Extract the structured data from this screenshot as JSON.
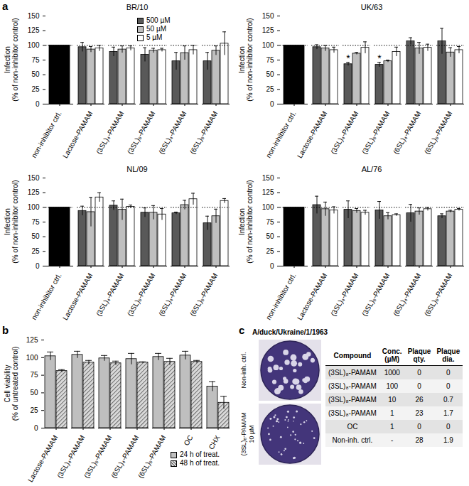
{
  "chart_data": [
    {
      "type": "bar",
      "title": "BR/10",
      "ylabel": "Infection\n(% of non-inhibitor control)",
      "categories": [
        "non-inhibitor ctrl.",
        "Lactose-PAMAM",
        "(3SL)₄-PAMAM",
        "(3SL)₈-PAMAM",
        "(6SL)₄-PAMAM",
        "(6SL)₈-PAMAM"
      ],
      "control": {
        "category": "non-inhibitor ctrl.",
        "value": 100,
        "color": "#000000"
      },
      "reference_line": {
        "value": 100,
        "line_style": "dotted"
      },
      "series": [
        {
          "name": "500 µM",
          "color": "#595959",
          "values": [
            null,
            97,
            89,
            84,
            73,
            73
          ],
          "errors": [
            null,
            8,
            8,
            12,
            15,
            15
          ]
        },
        {
          "name": "50 µM",
          "color": "#bfbfbf",
          "values": [
            null,
            93,
            93,
            91,
            87,
            91
          ],
          "errors": [
            null,
            5,
            6,
            4,
            12,
            8
          ]
        },
        {
          "name": "5 µM",
          "color": "#ffffff",
          "values": [
            null,
            95,
            95,
            92,
            92,
            103
          ],
          "errors": [
            null,
            5,
            4,
            3,
            8,
            20
          ]
        }
      ],
      "ylim": [
        0,
        150
      ],
      "yticks": [
        0,
        25,
        50,
        75,
        100,
        125,
        150
      ],
      "legend": "top-right"
    },
    {
      "type": "bar",
      "title": "UK/63",
      "ylabel": "Infection\n(% of non-inhibitor control)",
      "categories": [
        "non-inhibitor ctrl.",
        "Lactose-PAMAM",
        "(3SL)₄-PAMAM",
        "(3SL)₈-PAMAM",
        "(6SL)₄-PAMAM",
        "(6SL)₈-PAMAM"
      ],
      "control": {
        "category": "non-inhibitor ctrl.",
        "value": 100,
        "color": "#000000"
      },
      "reference_line": {
        "value": 100,
        "line_style": "dotted"
      },
      "series": [
        {
          "name": "500 µM",
          "color": "#595959",
          "values": [
            null,
            97,
            68,
            67,
            107,
            107
          ],
          "errors": [
            null,
            4,
            3,
            4,
            6,
            22
          ]
        },
        {
          "name": "50 µM",
          "color": "#bfbfbf",
          "values": [
            null,
            95,
            86,
            73,
            95,
            88
          ],
          "errors": [
            null,
            5,
            2,
            2,
            10,
            8
          ]
        },
        {
          "name": "5 µM",
          "color": "#ffffff",
          "values": [
            null,
            92,
            96,
            89,
            96,
            92
          ],
          "errors": [
            null,
            5,
            10,
            8,
            6,
            6
          ]
        }
      ],
      "annotations": [
        {
          "category": "(3SL)₄-PAMAM",
          "series": "500 µM",
          "text": "*"
        },
        {
          "category": "(3SL)₈-PAMAM",
          "series": "500 µM",
          "text": "*"
        }
      ],
      "ylim": [
        0,
        150
      ],
      "yticks": [
        0,
        25,
        50,
        75,
        100,
        125,
        150
      ]
    },
    {
      "type": "bar",
      "title": "NL/09",
      "ylabel": "Infection\n(% of non-inhibitor control)",
      "categories": [
        "non-inhibitor ctrl.",
        "Lactose-PAMAM",
        "(3SL)₄-PAMAM",
        "(3SL)₈-PAMAM",
        "(6SL)₄-PAMAM",
        "(6SL)₈-PAMAM"
      ],
      "control": {
        "category": "non-inhibitor ctrl.",
        "value": 100,
        "color": "#000000"
      },
      "reference_line": {
        "value": 100,
        "line_style": "dotted"
      },
      "series": [
        {
          "name": "500 µM",
          "color": "#595959",
          "values": [
            null,
            94,
            103,
            91,
            90,
            73
          ],
          "errors": [
            null,
            8,
            8,
            8,
            2,
            12
          ]
        },
        {
          "name": "50 µM",
          "color": "#bfbfbf",
          "values": [
            null,
            92,
            96,
            91,
            104,
            85
          ],
          "errors": [
            null,
            25,
            18,
            12,
            8,
            12
          ]
        },
        {
          "name": "5 µM",
          "color": "#ffffff",
          "values": [
            null,
            117,
            101,
            88,
            114,
            111
          ],
          "errors": [
            null,
            8,
            3,
            10,
            10,
            4
          ]
        }
      ],
      "ylim": [
        0,
        150
      ],
      "yticks": [
        0,
        25,
        50,
        75,
        100,
        125,
        150
      ]
    },
    {
      "type": "bar",
      "title": "AL/76",
      "ylabel": "Infection\n(% of non-inhibitor control)",
      "categories": [
        "non-inhibitor ctrl.",
        "Lactose-PAMAM",
        "(3SL)₄-PAMAM",
        "(3SL)₈-PAMAM",
        "(6SL)₄-PAMAM",
        "(6SL)₈-PAMAM"
      ],
      "control": {
        "category": "non-inhibitor ctrl.",
        "value": 100,
        "color": "#000000"
      },
      "reference_line": {
        "value": 100,
        "line_style": "dotted"
      },
      "series": [
        {
          "name": "500 µM",
          "color": "#595959",
          "values": [
            null,
            104,
            96,
            95,
            90,
            85
          ],
          "errors": [
            null,
            15,
            15,
            15,
            15,
            4
          ]
        },
        {
          "name": "50 µM",
          "color": "#bfbfbf",
          "values": [
            null,
            97,
            94,
            85,
            93,
            93
          ],
          "errors": [
            null,
            12,
            4,
            6,
            6,
            2
          ]
        },
        {
          "name": "5 µM",
          "color": "#ffffff",
          "values": [
            null,
            95,
            91,
            87,
            97,
            96
          ],
          "errors": [
            null,
            6,
            4,
            2,
            3,
            2
          ]
        }
      ],
      "ylim": [
        0,
        150
      ],
      "yticks": [
        0,
        25,
        50,
        75,
        100,
        125,
        150
      ]
    },
    {
      "type": "bar",
      "ylabel": "Cell viability\n(% of untreated control)",
      "categories": [
        "Lactose-PAMAM",
        "(3SL)₄-PAMAM",
        "(3SL)₈-PAMAM",
        "(6SL)₄-PAMAM",
        "(6SL)₈-PAMAM",
        "OC",
        "CHX"
      ],
      "series": [
        {
          "name": "24 h of treat.",
          "color": "#bfbfbf",
          "values": [
            102,
            104,
            99,
            98,
            101,
            103,
            59
          ],
          "errors": [
            6,
            5,
            4,
            8,
            5,
            6,
            7
          ]
        },
        {
          "name": "48 h of treat.",
          "color": "#d9d9d9",
          "values": [
            81,
            93,
            92,
            93,
            94,
            94,
            36
          ],
          "errors": [
            2,
            3,
            3,
            1,
            5,
            2,
            9
          ]
        }
      ],
      "ylim": [
        0,
        125
      ],
      "yticks": [
        0,
        25,
        50,
        75,
        100,
        125
      ],
      "legend": "bottom-right"
    }
  ],
  "panels": [
    {
      "label": "a"
    },
    {
      "label": "b"
    },
    {
      "label": "c",
      "title": "A/duck/Ukraine/1/1963",
      "images": [
        {
          "label": "Non-inh. ctrl."
        },
        {
          "label": "(3SL)₈-PAMAM\n10 µM"
        }
      ],
      "table": {
        "header": [
          "Compound",
          "Conc.\n(µM)",
          "Plaque\nqty.",
          "Plaque\ndia."
        ],
        "rows": [
          [
            "(3SL)₈-PAMAM",
            "1000",
            "0",
            "0"
          ],
          [
            "(3SL)₈-PAMAM",
            "100",
            "0",
            "0"
          ],
          [
            "(3SL)₈-PAMAM",
            "10",
            "26",
            "0.7"
          ],
          [
            "(3SL)₈-PAMAM",
            "1",
            "23",
            "1.7"
          ],
          [
            "OC",
            "1",
            "0",
            "0"
          ],
          [
            "Non-inh. ctrl.",
            "-",
            "28",
            "1.9"
          ]
        ]
      }
    }
  ]
}
